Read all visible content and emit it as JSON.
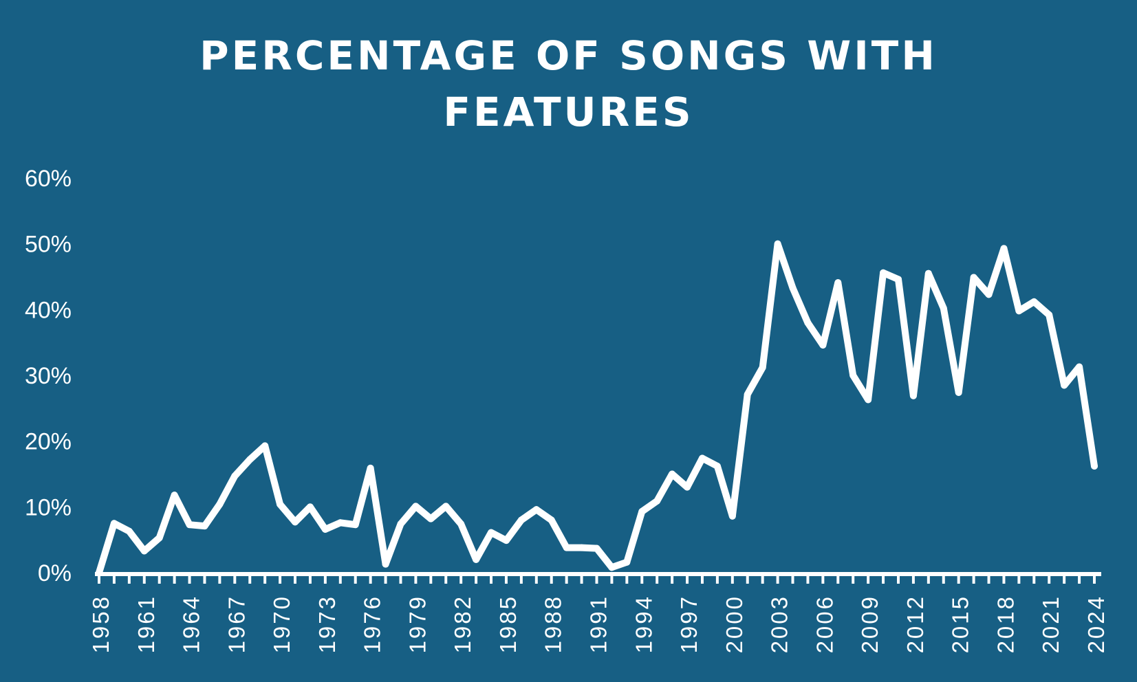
{
  "colors": {
    "background": "#175f84",
    "line": "#ffffff"
  },
  "chart_data": {
    "type": "line",
    "title_lines": [
      "PERCENTAGE OF SONGS WITH",
      "FEATURES"
    ],
    "xlabel": "",
    "ylabel": "",
    "x": [
      1958,
      1959,
      1960,
      1961,
      1962,
      1963,
      1964,
      1965,
      1966,
      1967,
      1968,
      1969,
      1970,
      1971,
      1972,
      1973,
      1974,
      1975,
      1976,
      1977,
      1978,
      1979,
      1980,
      1981,
      1982,
      1983,
      1984,
      1985,
      1986,
      1987,
      1988,
      1989,
      1990,
      1991,
      1992,
      1993,
      1994,
      1995,
      1996,
      1997,
      1998,
      1999,
      2000,
      2001,
      2002,
      2003,
      2004,
      2005,
      2006,
      2007,
      2008,
      2009,
      2010,
      2011,
      2012,
      2013,
      2014,
      2015,
      2016,
      2017,
      2018,
      2019,
      2020,
      2021,
      2022,
      2023,
      2024
    ],
    "series": [
      {
        "values": [
          0,
          7.5,
          6.3,
          3.3,
          5.3,
          11.8,
          7.3,
          7.1,
          10.4,
          14.7,
          17.2,
          19.3,
          10.4,
          7.7,
          10.0,
          6.6,
          7.6,
          7.3,
          15.9,
          1.3,
          7.4,
          10.1,
          8.2,
          10.1,
          7.4,
          2.0,
          6.1,
          4.9,
          8.0,
          9.6,
          8.0,
          3.8,
          3.8,
          3.7,
          0.8,
          1.6,
          9.3,
          10.9,
          15.0,
          13.0,
          17.4,
          16.2,
          8.6,
          27.1,
          31.2,
          50.0,
          43.3,
          38.0,
          34.6,
          44.1,
          30.0,
          26.3,
          45.6,
          44.6,
          26.9,
          45.5,
          40.2,
          27.4,
          44.9,
          42.3,
          49.3,
          39.8,
          41.2,
          39.2,
          28.5,
          31.3,
          16.2
        ]
      }
    ],
    "x_tick_labels": [
      "1958",
      "1961",
      "1964",
      "1967",
      "1970",
      "1973",
      "1976",
      "1979",
      "1982",
      "1985",
      "1988",
      "1991",
      "1994",
      "1997",
      "2000",
      "2003",
      "2006",
      "2009",
      "2012",
      "2015",
      "2018",
      "2021",
      "2024"
    ],
    "y_tick_labels": [
      "0%",
      "10%",
      "20%",
      "30%",
      "40%",
      "50%",
      "60%"
    ],
    "y_ticks": [
      0,
      10,
      20,
      30,
      40,
      50,
      60
    ],
    "ylim": [
      0,
      60
    ],
    "xlim": [
      1958,
      2024
    ],
    "grid": false,
    "legend": "none",
    "drop_lines": true
  }
}
